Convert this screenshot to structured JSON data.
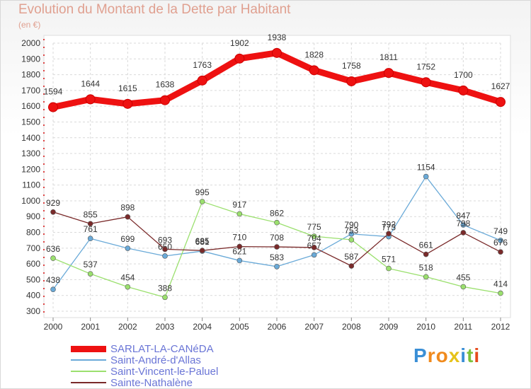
{
  "header": {
    "title": "Evolution du Montant de la Dette par Habitant",
    "unit": "(en €)"
  },
  "brand": {
    "letters": [
      "P",
      "r",
      "o",
      "x",
      "i",
      "t",
      "i"
    ],
    "colors": [
      "#3a8fd6",
      "#f08a1c",
      "#f08a1c",
      "#e6c21a",
      "#3a8fd6",
      "#7cc23a",
      "#e64a1c"
    ]
  },
  "chart_data": {
    "type": "line",
    "title": "Evolution du Montant de la Dette par Habitant",
    "ylabel": "(en €)",
    "xlabel": "",
    "x": [
      "2000",
      "2001",
      "2002",
      "2003",
      "2004",
      "2005",
      "2006",
      "2007",
      "2008",
      "2009",
      "2010",
      "2011",
      "2012"
    ],
    "ylim": [
      300,
      2000
    ],
    "yticks": [
      300,
      400,
      500,
      600,
      700,
      800,
      900,
      1000,
      1100,
      1200,
      1300,
      1400,
      1500,
      1600,
      1700,
      1800,
      1900,
      2000
    ],
    "grid": true,
    "legend_position": "bottom-left",
    "series": [
      {
        "name": "SARLAT-LA-CANéDA",
        "color": "#ee1111",
        "values": [
          1594,
          1644,
          1615,
          1638,
          1763,
          1902,
          1938,
          1828,
          1758,
          1811,
          1752,
          1700,
          1627
        ]
      },
      {
        "name": "Saint-André-d'Allas",
        "color": "#6aaad8",
        "values": [
          438,
          761,
          699,
          650,
          681,
          621,
          583,
          657,
          790,
          773,
          1154,
          847,
          749
        ]
      },
      {
        "name": "Saint-Vincent-le-Paluel",
        "color": "#9be06e",
        "values": [
          636,
          537,
          454,
          388,
          995,
          917,
          862,
          775,
          753,
          571,
          518,
          455,
          414
        ]
      },
      {
        "name": "Sainte-Nathalène",
        "color": "#7a2a2a",
        "values": [
          929,
          855,
          898,
          693,
          685,
          710,
          708,
          704,
          587,
          792,
          661,
          798,
          676
        ]
      }
    ]
  }
}
